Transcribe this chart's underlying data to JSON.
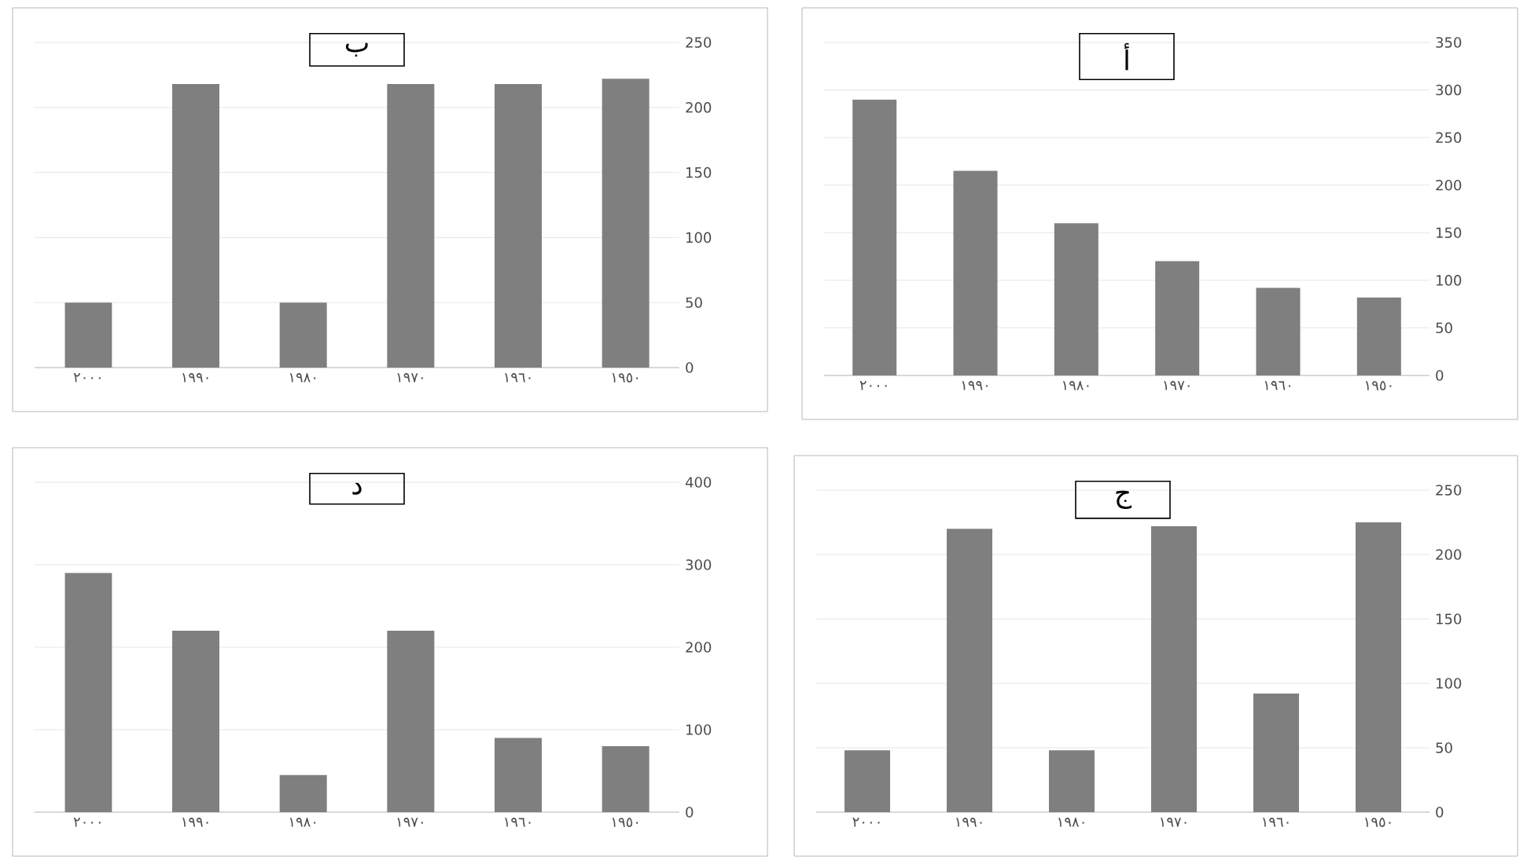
{
  "chart_data": [
    {
      "type": "bar",
      "title": "ب",
      "categories": [
        "٢٠٠٠",
        "١٩٩٠",
        "١٩٨٠",
        "١٩٧٠",
        "١٩٦٠",
        "١٩٥٠"
      ],
      "values": [
        50,
        218,
        50,
        218,
        218,
        222
      ],
      "color": "#7f7f7f",
      "ylim": [
        0,
        250
      ],
      "yticks": [
        0,
        50,
        100,
        150,
        200,
        250
      ],
      "grid": "y"
    },
    {
      "type": "bar",
      "title": "أ",
      "categories": [
        "٢٠٠٠",
        "١٩٩٠",
        "١٩٨٠",
        "١٩٧٠",
        "١٩٦٠",
        "١٩٥٠"
      ],
      "values": [
        290,
        215,
        160,
        120,
        92,
        82
      ],
      "color": "#7f7f7f",
      "ylim": [
        0,
        350
      ],
      "yticks": [
        0,
        50,
        100,
        150,
        200,
        250,
        300,
        350
      ],
      "grid": "y"
    },
    {
      "type": "bar",
      "title": "د",
      "categories": [
        "٢٠٠٠",
        "١٩٩٠",
        "١٩٨٠",
        "١٩٧٠",
        "١٩٦٠",
        "١٩٥٠"
      ],
      "values": [
        290,
        220,
        45,
        220,
        90,
        80
      ],
      "color": "#7f7f7f",
      "ylim": [
        0,
        400
      ],
      "yticks": [
        0,
        100,
        200,
        300,
        400
      ],
      "grid": "y"
    },
    {
      "type": "bar",
      "title": "ج",
      "categories": [
        "٢٠٠٠",
        "١٩٩٠",
        "١٩٨٠",
        "١٩٧٠",
        "١٩٦٠",
        "١٩٥٠"
      ],
      "values": [
        48,
        220,
        48,
        222,
        92,
        225
      ],
      "color": "#7f7f7f",
      "ylim": [
        0,
        250
      ],
      "yticks": [
        0,
        50,
        100,
        150,
        200,
        250
      ],
      "grid": "y"
    }
  ]
}
